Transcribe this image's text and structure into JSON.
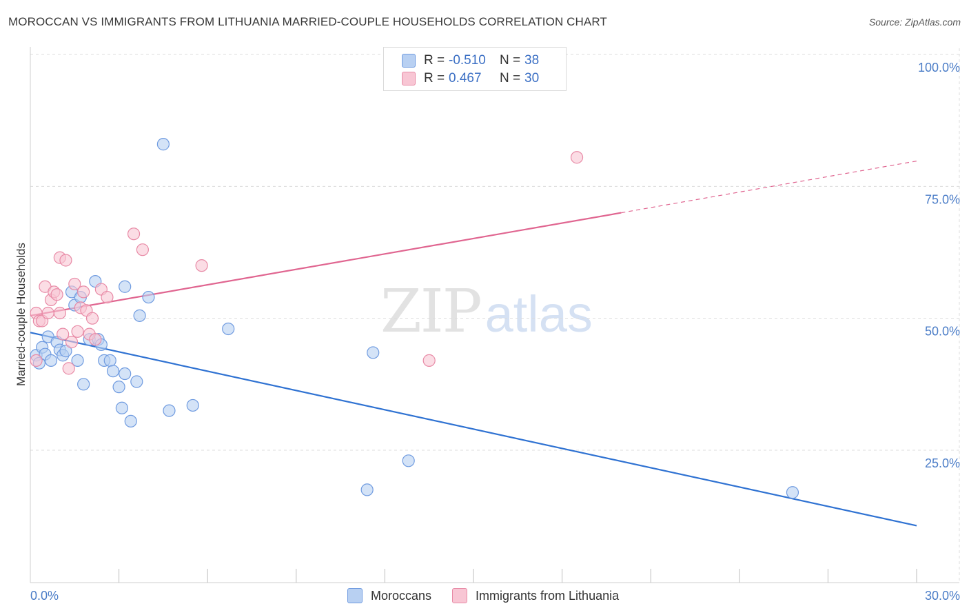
{
  "title": "MOROCCAN VS IMMIGRANTS FROM LITHUANIA MARRIED-COUPLE HOUSEHOLDS CORRELATION CHART",
  "source": "Source: ZipAtlas.com",
  "watermark": {
    "zip": "ZIP",
    "atlas": "atlas"
  },
  "legend": {
    "rows": [
      {
        "r_label": "R =",
        "r_value": "-0.510",
        "n_label": "N =",
        "n_value": "38"
      },
      {
        "r_label": "R =",
        "r_value": "0.467",
        "n_label": "N =",
        "n_value": "30"
      }
    ]
  },
  "colors": {
    "blue_fill": "#b8d0f2",
    "blue_stroke": "#6f9be0",
    "blue_line": "#2f72d2",
    "pink_fill": "#f8c6d4",
    "pink_stroke": "#e88aa6",
    "pink_line": "#e06590",
    "axis_text": "#4a7cc7",
    "grid": "#dcdcdc"
  },
  "chart_data": {
    "type": "scatter",
    "title": "MOROCCAN VS IMMIGRANTS FROM LITHUANIA MARRIED-COUPLE HOUSEHOLDS CORRELATION CHART",
    "xlabel": "",
    "ylabel": "Married-couple Households",
    "xlim": [
      0,
      30
    ],
    "ylim": [
      0,
      105
    ],
    "x_tick_labels": [
      "0.0%",
      "30.0%"
    ],
    "y_ticks": [
      25,
      50,
      75,
      100
    ],
    "y_tick_labels": [
      "25.0%",
      "50.0%",
      "75.0%",
      "100.0%"
    ],
    "grid": true,
    "legend_position": "top-center",
    "series": [
      {
        "name": "Moroccans",
        "color": "#6f9be0",
        "points": [
          [
            0.2,
            43.0
          ],
          [
            0.3,
            41.5
          ],
          [
            0.4,
            44.5
          ],
          [
            0.5,
            43.2
          ],
          [
            0.6,
            46.5
          ],
          [
            0.7,
            42.0
          ],
          [
            0.9,
            45.5
          ],
          [
            1.0,
            44.0
          ],
          [
            1.1,
            43.0
          ],
          [
            1.2,
            43.8
          ],
          [
            1.4,
            55.0
          ],
          [
            1.5,
            52.5
          ],
          [
            1.6,
            42.0
          ],
          [
            1.7,
            54.0
          ],
          [
            1.8,
            37.5
          ],
          [
            2.0,
            46.0
          ],
          [
            2.2,
            57.0
          ],
          [
            2.3,
            46.0
          ],
          [
            2.4,
            45.0
          ],
          [
            2.5,
            42.0
          ],
          [
            2.7,
            42.0
          ],
          [
            2.8,
            40.0
          ],
          [
            3.0,
            37.0
          ],
          [
            3.1,
            33.0
          ],
          [
            3.2,
            39.5
          ],
          [
            3.2,
            56.0
          ],
          [
            3.4,
            30.5
          ],
          [
            3.6,
            38.0
          ],
          [
            3.7,
            50.5
          ],
          [
            4.0,
            54.0
          ],
          [
            4.5,
            83.0
          ],
          [
            4.7,
            32.5
          ],
          [
            5.5,
            33.5
          ],
          [
            6.7,
            48.0
          ],
          [
            11.4,
            17.5
          ],
          [
            11.6,
            43.5
          ],
          [
            12.8,
            23.0
          ],
          [
            25.8,
            17.0
          ]
        ]
      },
      {
        "name": "Immigrants from Lithuania",
        "color": "#e88aa6",
        "points": [
          [
            0.2,
            42.0
          ],
          [
            0.2,
            51.0
          ],
          [
            0.3,
            49.5
          ],
          [
            0.4,
            49.5
          ],
          [
            0.5,
            56.0
          ],
          [
            0.6,
            51.0
          ],
          [
            0.7,
            53.5
          ],
          [
            0.8,
            55.0
          ],
          [
            0.9,
            54.5
          ],
          [
            1.0,
            51.0
          ],
          [
            1.0,
            61.5
          ],
          [
            1.1,
            47.0
          ],
          [
            1.2,
            61.0
          ],
          [
            1.3,
            40.5
          ],
          [
            1.4,
            45.5
          ],
          [
            1.5,
            56.5
          ],
          [
            1.6,
            47.5
          ],
          [
            1.7,
            52.0
          ],
          [
            1.8,
            55.0
          ],
          [
            1.9,
            51.5
          ],
          [
            2.0,
            47.0
          ],
          [
            2.1,
            50.0
          ],
          [
            2.2,
            46.0
          ],
          [
            2.4,
            55.5
          ],
          [
            2.6,
            54.0
          ],
          [
            3.5,
            66.0
          ],
          [
            3.8,
            63.0
          ],
          [
            5.8,
            60.0
          ],
          [
            13.5,
            42.0
          ],
          [
            18.5,
            80.5
          ]
        ]
      }
    ],
    "trendlines": [
      {
        "series": "Moroccans",
        "x": [
          0,
          30
        ],
        "y": [
          47.3,
          10.7
        ],
        "style": "solid"
      },
      {
        "series": "Immigrants from Lithuania",
        "x": [
          0,
          20
        ],
        "y": [
          50.5,
          70.0
        ],
        "style": "solid"
      },
      {
        "series": "Immigrants from Lithuania",
        "x": [
          20,
          30
        ],
        "y": [
          70.0,
          79.8
        ],
        "style": "dashed"
      }
    ]
  },
  "bottom_legend": [
    {
      "label": "Moroccans"
    },
    {
      "label": "Immigrants from Lithuania"
    }
  ]
}
